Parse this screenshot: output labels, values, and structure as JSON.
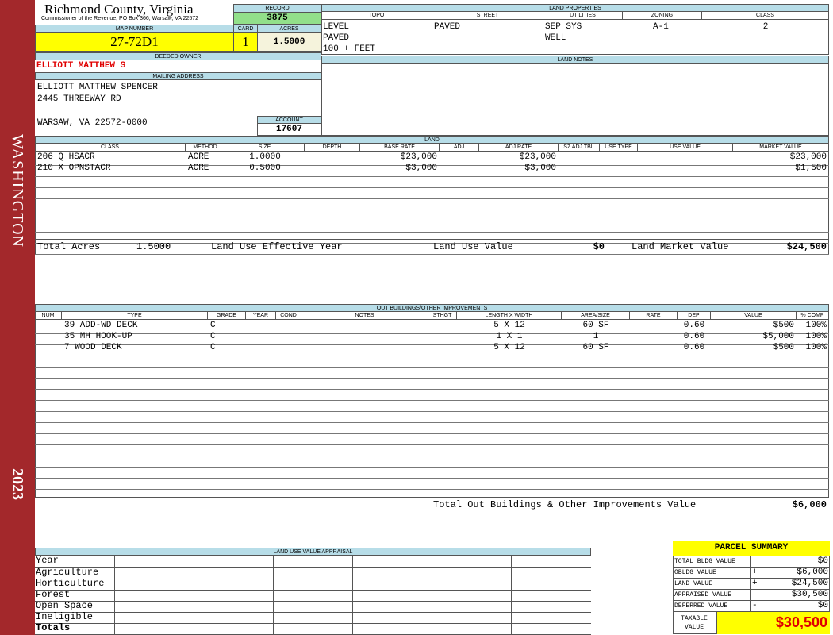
{
  "sidebar": {
    "district": "WASHINGTON",
    "year": "2023"
  },
  "header": {
    "county": "Richmond County, Virginia",
    "address": "Commissioner of the Revenue, PO Box 366, Warsaw, VA 22572"
  },
  "record": {
    "label": "RECORD",
    "value": "3875"
  },
  "map_number": {
    "label": "MAP NUMBER",
    "value": "27-72D1"
  },
  "card": {
    "label": "CARD",
    "value": "1"
  },
  "acres": {
    "label": "ACRES",
    "value": "1.5000"
  },
  "land_properties": {
    "title": "LAND PROPERTIES",
    "columns": [
      {
        "name": "TOPO",
        "values": [
          "LEVEL",
          "PAVED",
          "100 + FEET"
        ]
      },
      {
        "name": "STREET",
        "values": [
          "PAVED"
        ]
      },
      {
        "name": "UTILITIES",
        "values": [
          "SEP SYS",
          "WELL"
        ]
      },
      {
        "name": "ZONING",
        "values": [
          "A-1"
        ]
      },
      {
        "name": "CLASS",
        "values": [
          "2"
        ]
      }
    ]
  },
  "land_notes": {
    "title": "LAND NOTES"
  },
  "deeded_owner": {
    "label": "DEEDED OWNER",
    "value": "ELLIOTT MATTHEW S"
  },
  "mailing_address": {
    "label": "MAILING ADDRESS",
    "lines": [
      "ELLIOTT MATTHEW SPENCER",
      "2445 THREEWAY RD",
      "WARSAW, VA 22572-0000"
    ]
  },
  "account": {
    "label": "ACCOUNT",
    "value": "17607"
  },
  "land": {
    "title": "LAND",
    "columns": [
      "CLASS",
      "METHOD",
      "SIZE",
      "DEPTH",
      "BASE RATE",
      "ADJ",
      "ADJ RATE",
      "SZ ADJ TBL",
      "USE TYPE",
      "USE VALUE",
      "MARKET VALUE"
    ],
    "rows": [
      [
        "206 Q HSACR",
        "ACRE",
        "1.0000",
        null,
        "$23,000",
        null,
        "$23,000",
        null,
        null,
        null,
        "$23,000"
      ],
      [
        "210 X OPNSTACR",
        "ACRE",
        "0.5000",
        null,
        "$3,000",
        null,
        "$3,000",
        null,
        null,
        null,
        "$1,500"
      ]
    ],
    "totals": {
      "total_acres_label": "Total Acres",
      "total_acres": "1.5000",
      "effective_year_label": "Land Use Effective Year",
      "use_value_label": "Land Use Value",
      "use_value": "$0",
      "market_value_label": "Land Market Value",
      "market_value": "$24,500"
    }
  },
  "outbuildings": {
    "title": "OUT BUILDINGS/OTHER IMPROVEMENTS",
    "columns": [
      "NUM",
      "TYPE",
      "GRADE",
      "YEAR",
      "COND",
      "NOTES",
      "STHGT",
      "LENGTH X WIDTH",
      "AREA/SIZE",
      "RATE",
      "DEP",
      "VALUE",
      "% COMP"
    ],
    "rows": [
      [
        null,
        "39 ADD-WD DECK",
        "C",
        null,
        null,
        null,
        null,
        "5 X 12",
        "60 SF",
        null,
        "0.60",
        "$500",
        "100%"
      ],
      [
        null,
        "35 MH HOOK-UP",
        "C",
        null,
        null,
        null,
        null,
        "1 X 1",
        "1",
        null,
        "0.60",
        "$5,000",
        "100%"
      ],
      [
        null,
        "7 WOOD DECK",
        "C",
        null,
        null,
        null,
        null,
        "5 X 12",
        "60 SF",
        null,
        "0.60",
        "$500",
        "100%"
      ]
    ],
    "total_label": "Total Out Buildings & Other Improvements Value",
    "total_value": "$6,000"
  },
  "land_use_appraisal": {
    "title": "LAND USE VALUE APPRAISAL",
    "rows": [
      "Year",
      "Agriculture",
      "Horticulture",
      "Forest",
      "Open Space",
      "Ineligible",
      "Totals"
    ]
  },
  "parcel_summary": {
    "title": "PARCEL SUMMARY",
    "rows": [
      {
        "label": "TOTAL BLDG VALUE",
        "sign": null,
        "value": "$0"
      },
      {
        "label": "OBLDG VALUE",
        "sign": "+",
        "value": "$6,000"
      },
      {
        "label": "LAND VALUE",
        "sign": "+",
        "value": "$24,500"
      },
      {
        "label": "APPRAISED VALUE",
        "sign": null,
        "value": "$30,500"
      },
      {
        "label": "DEFERRED VALUE",
        "sign": "-",
        "value": "$0"
      }
    ],
    "taxable_label": "TAXABLE VALUE",
    "taxable_value": "$30,500"
  }
}
